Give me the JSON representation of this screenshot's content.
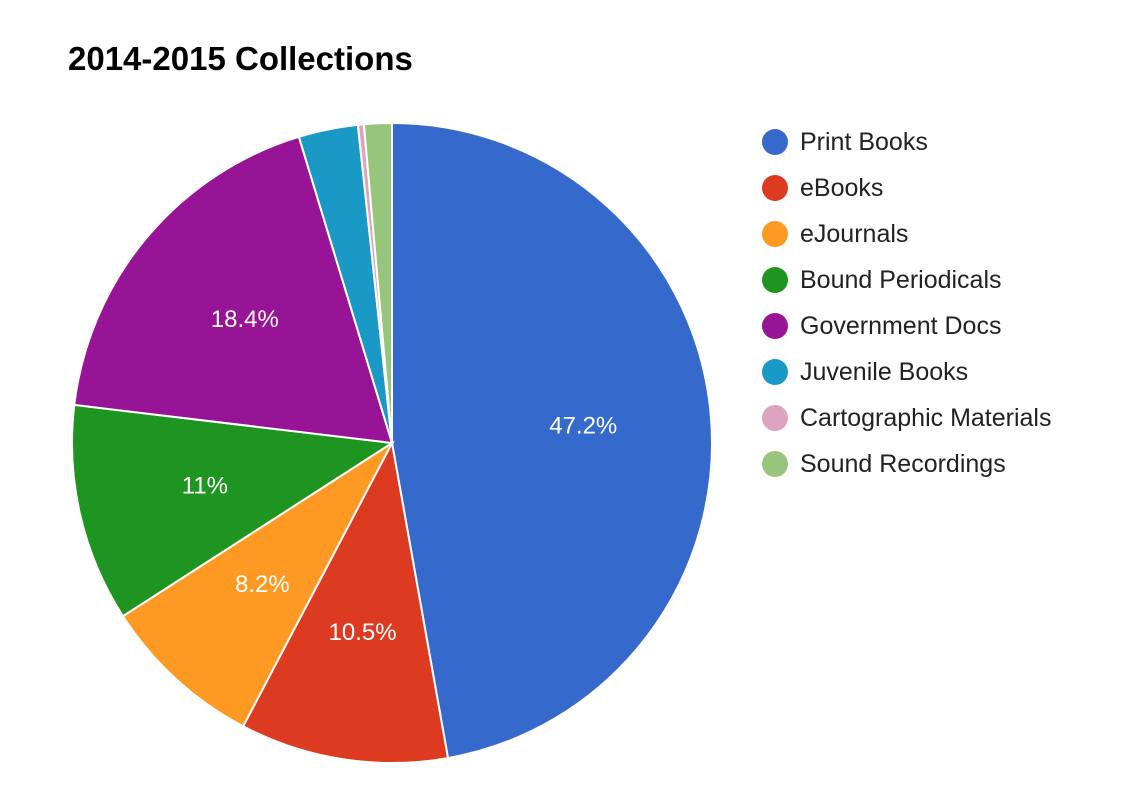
{
  "chart_data": {
    "type": "pie",
    "title": "2014-2015 Collections",
    "legend_position": "right",
    "start_angle_deg": 0,
    "slices": [
      {
        "name": "Print Books",
        "value": 47.2,
        "label": "47.2%",
        "color": "#3669cc"
      },
      {
        "name": "eBooks",
        "value": 10.5,
        "label": "10.5%",
        "color": "#dc3b22"
      },
      {
        "name": "eJournals",
        "value": 8.2,
        "label": "8.2%",
        "color": "#fe9a23"
      },
      {
        "name": "Bound Periodicals",
        "value": 11.0,
        "label": "11%",
        "color": "#1f9521"
      },
      {
        "name": "Government Docs",
        "value": 18.4,
        "label": "18.4%",
        "color": "#971497"
      },
      {
        "name": "Juvenile Books",
        "value": 3.0,
        "label": "",
        "color": "#1a98c6"
      },
      {
        "name": "Cartographic Materials",
        "value": 0.3,
        "label": "",
        "color": "#dca4bf"
      },
      {
        "name": "Sound Recordings",
        "value": 1.4,
        "label": "",
        "color": "#97c57c"
      }
    ]
  }
}
